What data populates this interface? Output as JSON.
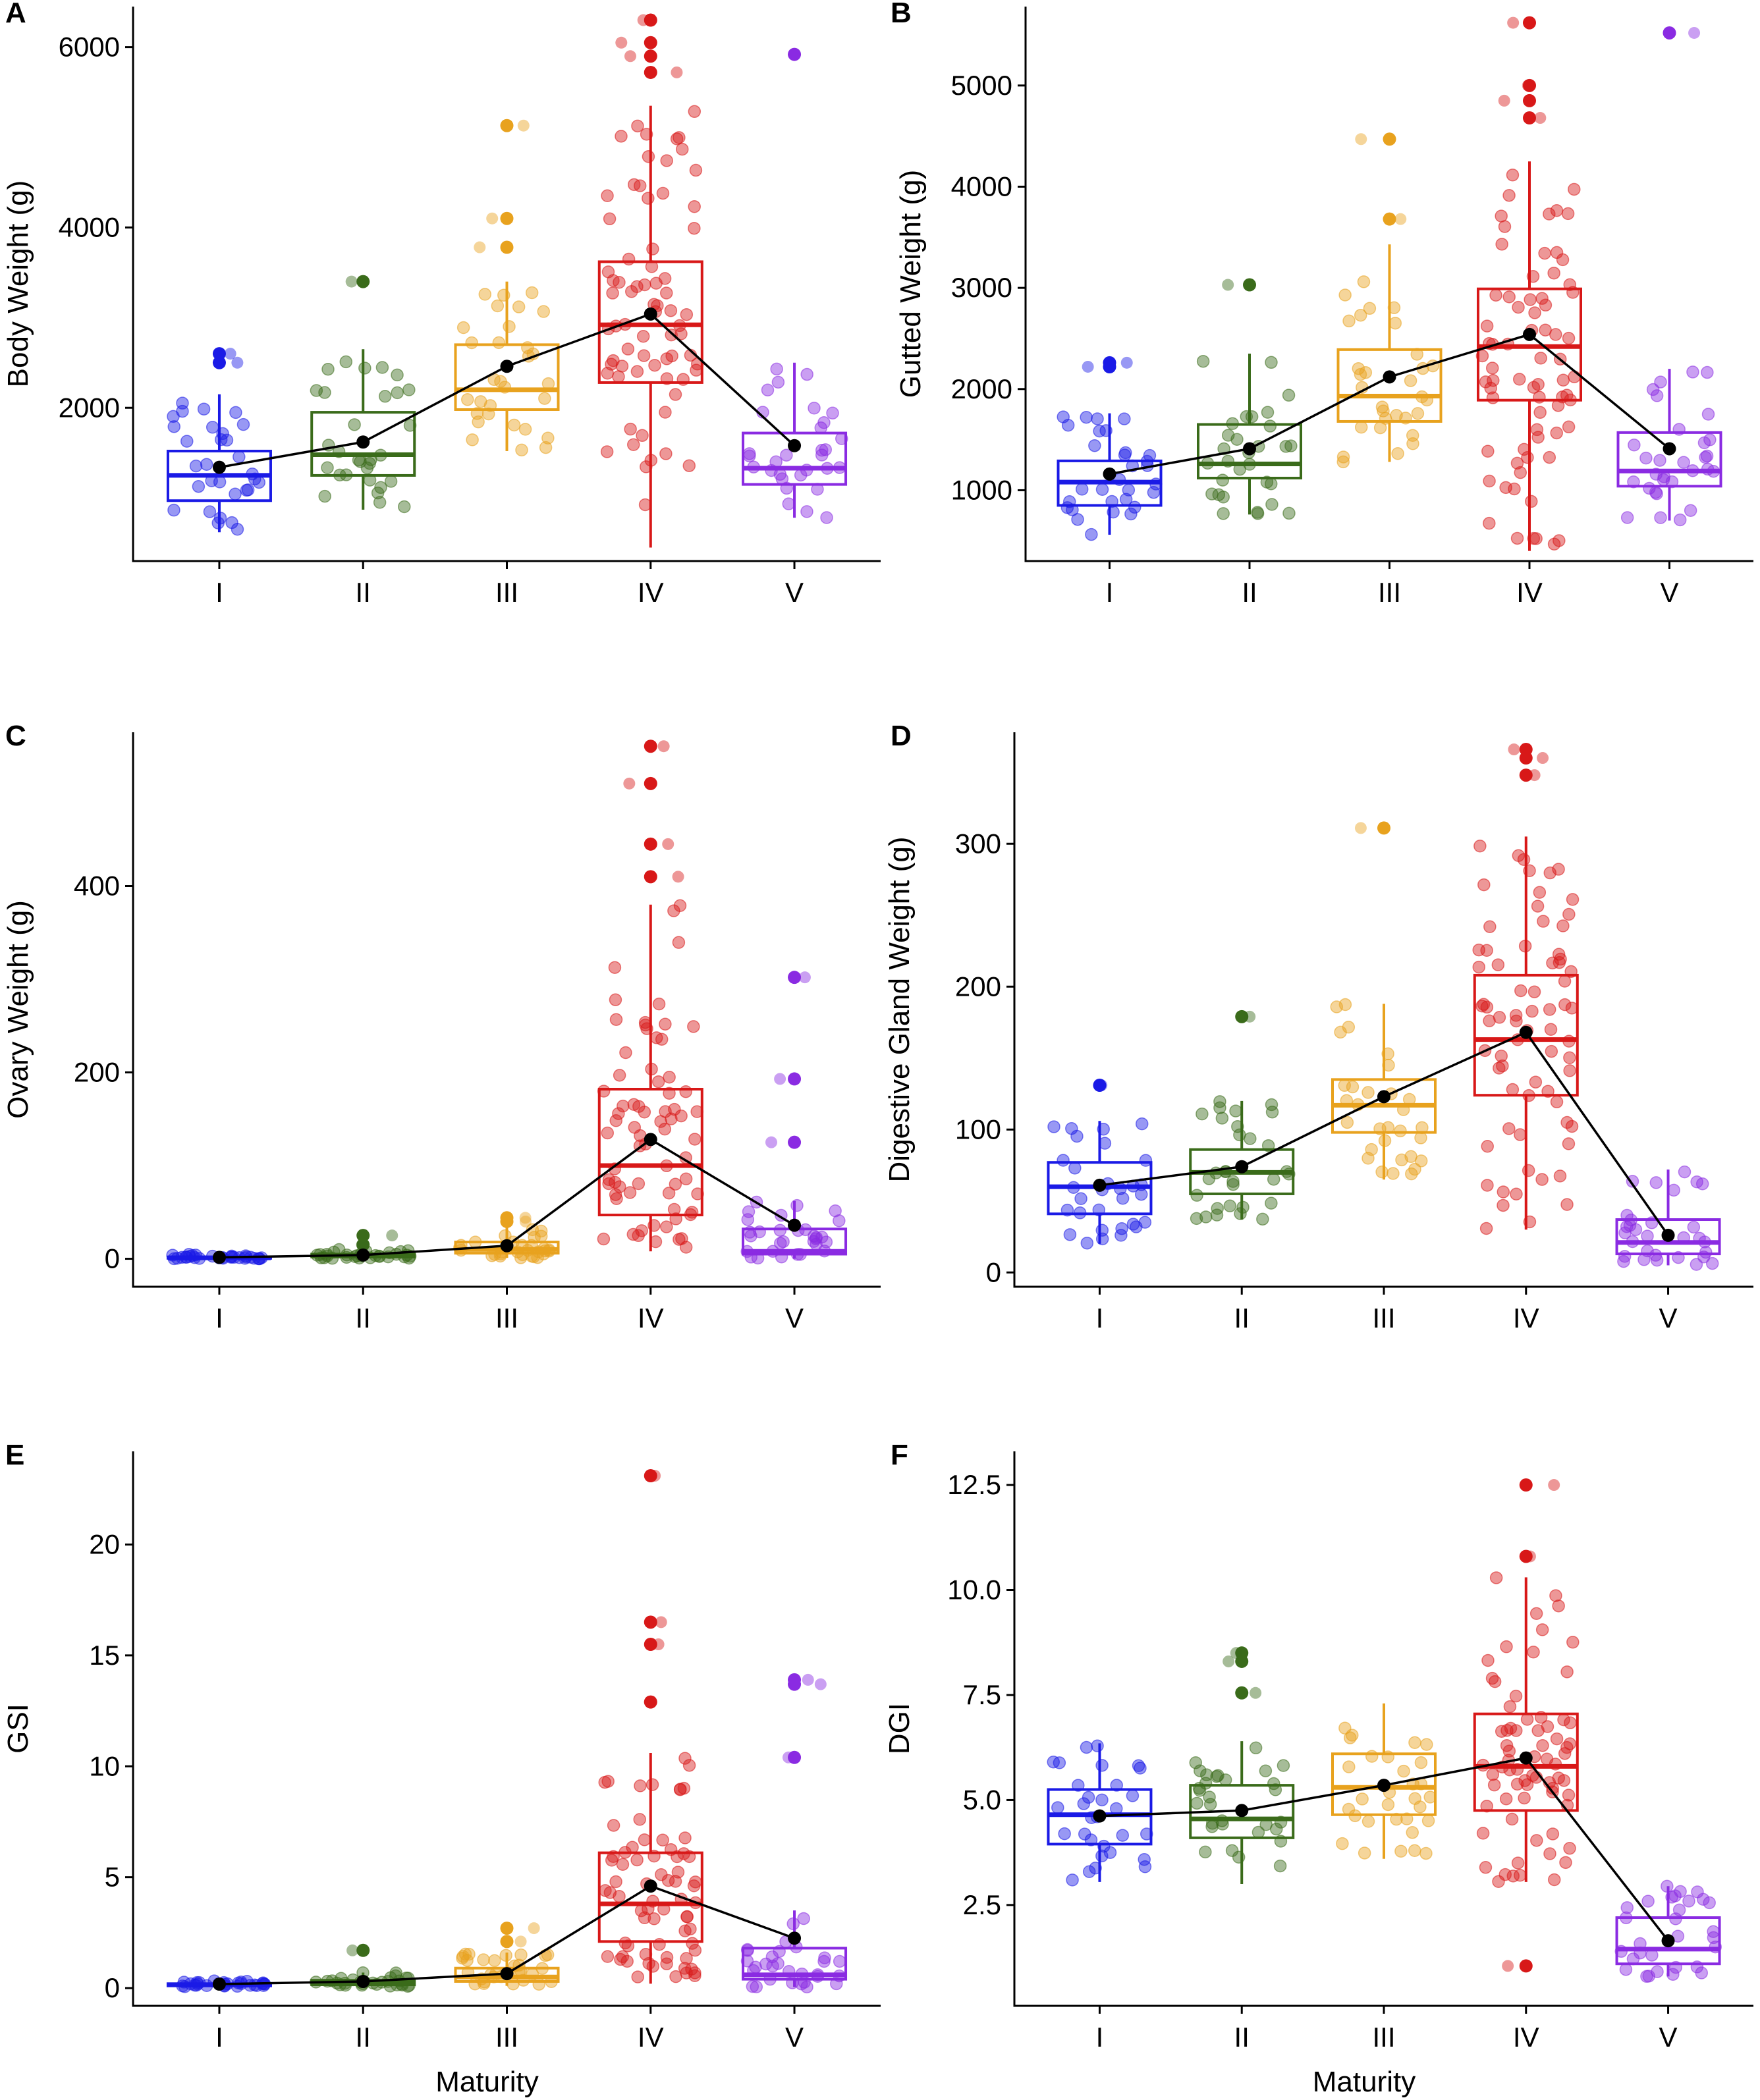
{
  "figure": {
    "xlabel_bottom": "Maturity"
  },
  "colors": {
    "I": "#1a1ae6",
    "II": "#3a6b1a",
    "III": "#e8a21e",
    "IV": "#d81818",
    "V": "#8a2be2",
    "mean_line": "#000000"
  },
  "chart_data": [
    {
      "panel": "A",
      "type": "box",
      "ylabel": "Body Weight (g)",
      "ylim": [
        300,
        6450
      ],
      "yticks": [
        2000,
        4000,
        6000
      ],
      "categories": [
        "I",
        "II",
        "III",
        "IV",
        "V"
      ],
      "boxes": [
        {
          "q1": 970,
          "median": 1250,
          "q3": 1520,
          "whisker_low": 620,
          "whisker_high": 2150,
          "mean": 1340,
          "outliers": [
            2500,
            2600
          ]
        },
        {
          "q1": 1250,
          "median": 1480,
          "q3": 1950,
          "whisker_low": 870,
          "whisker_high": 2650,
          "mean": 1620,
          "outliers": [
            3400
          ]
        },
        {
          "q1": 1980,
          "median": 2200,
          "q3": 2700,
          "whisker_low": 1520,
          "whisker_high": 3400,
          "mean": 2460,
          "outliers": [
            3780,
            4100,
            5130
          ]
        },
        {
          "q1": 2280,
          "median": 2920,
          "q3": 3620,
          "whisker_low": 450,
          "whisker_high": 5350,
          "mean": 3040,
          "outliers": [
            5720,
            5900,
            6050,
            6300
          ]
        },
        {
          "q1": 1150,
          "median": 1330,
          "q3": 1720,
          "whisker_low": 780,
          "whisker_high": 2500,
          "mean": 1580,
          "outliers": [
            5920
          ]
        }
      ]
    },
    {
      "panel": "B",
      "type": "box",
      "ylabel": "Gutted Weight (g)",
      "ylim": [
        300,
        5780
      ],
      "yticks": [
        1000,
        2000,
        3000,
        4000,
        5000
      ],
      "categories": [
        "I",
        "II",
        "III",
        "IV",
        "V"
      ],
      "boxes": [
        {
          "q1": 850,
          "median": 1080,
          "q3": 1290,
          "whisker_low": 560,
          "whisker_high": 1760,
          "mean": 1160,
          "outliers": [
            2220,
            2260
          ]
        },
        {
          "q1": 1120,
          "median": 1260,
          "q3": 1650,
          "whisker_low": 760,
          "whisker_high": 2350,
          "mean": 1410,
          "outliers": [
            3030
          ]
        },
        {
          "q1": 1680,
          "median": 1930,
          "q3": 2390,
          "whisker_low": 1280,
          "whisker_high": 3430,
          "mean": 2120,
          "outliers": [
            3680,
            4470
          ]
        },
        {
          "q1": 1890,
          "median": 2420,
          "q3": 2990,
          "whisker_low": 400,
          "whisker_high": 4250,
          "mean": 2540,
          "outliers": [
            4680,
            4850,
            5000,
            5620
          ]
        },
        {
          "q1": 1040,
          "median": 1190,
          "q3": 1570,
          "whisker_low": 700,
          "whisker_high": 2200,
          "mean": 1410,
          "outliers": [
            5520
          ]
        }
      ]
    },
    {
      "panel": "C",
      "type": "box",
      "ylabel": "Ovary Weight (g)",
      "ylim": [
        -30,
        565
      ],
      "yticks": [
        0,
        200,
        400
      ],
      "categories": [
        "I",
        "II",
        "III",
        "IV",
        "V"
      ],
      "boxes": [
        {
          "q1": 0.5,
          "median": 1,
          "q3": 2,
          "whisker_low": 0,
          "whisker_high": 5,
          "mean": 1.5,
          "outliers": []
        },
        {
          "q1": 2,
          "median": 3,
          "q3": 5,
          "whisker_low": 0.5,
          "whisker_high": 10,
          "mean": 4,
          "outliers": [
            15,
            25
          ]
        },
        {
          "q1": 6,
          "median": 10,
          "q3": 18,
          "whisker_low": 1,
          "whisker_high": 35,
          "mean": 14,
          "outliers": [
            40,
            44
          ]
        },
        {
          "q1": 47,
          "median": 100,
          "q3": 182,
          "whisker_low": 8,
          "whisker_high": 380,
          "mean": 128,
          "outliers": [
            410,
            445,
            510,
            550
          ]
        },
        {
          "q1": 5,
          "median": 8,
          "q3": 32,
          "whisker_low": 0,
          "whisker_high": 62,
          "mean": 36,
          "outliers": [
            125,
            193,
            302
          ]
        }
      ]
    },
    {
      "panel": "D",
      "type": "box",
      "ylabel": "Digestive Gland Weight (g)",
      "ylim": [
        -10,
        378
      ],
      "yticks": [
        0,
        100,
        200,
        300
      ],
      "categories": [
        "I",
        "II",
        "III",
        "IV",
        "V"
      ],
      "boxes": [
        {
          "q1": 41,
          "median": 60,
          "q3": 77,
          "whisker_low": 20,
          "whisker_high": 106,
          "mean": 61,
          "outliers": [
            131
          ]
        },
        {
          "q1": 55,
          "median": 70,
          "q3": 86,
          "whisker_low": 37,
          "whisker_high": 120,
          "mean": 74,
          "outliers": [
            179
          ]
        },
        {
          "q1": 98,
          "median": 117,
          "q3": 135,
          "whisker_low": 65,
          "whisker_high": 188,
          "mean": 123,
          "outliers": [
            311
          ]
        },
        {
          "q1": 124,
          "median": 163,
          "q3": 208,
          "whisker_low": 30,
          "whisker_high": 305,
          "mean": 168,
          "outliers": [
            348,
            360,
            366
          ]
        },
        {
          "q1": 13,
          "median": 21,
          "q3": 37,
          "whisker_low": 5,
          "whisker_high": 72,
          "mean": 26,
          "outliers": []
        }
      ]
    },
    {
      "panel": "E",
      "type": "box",
      "ylabel": "GSI",
      "ylim": [
        -0.8,
        24.2
      ],
      "yticks": [
        0,
        5,
        10,
        15,
        20
      ],
      "categories": [
        "I",
        "II",
        "III",
        "IV",
        "V"
      ],
      "boxes": [
        {
          "q1": 0.1,
          "median": 0.15,
          "q3": 0.2,
          "whisker_low": 0.05,
          "whisker_high": 0.35,
          "mean": 0.18,
          "outliers": []
        },
        {
          "q1": 0.15,
          "median": 0.22,
          "q3": 0.35,
          "whisker_low": 0.05,
          "whisker_high": 0.7,
          "mean": 0.3,
          "outliers": [
            1.7
          ]
        },
        {
          "q1": 0.3,
          "median": 0.5,
          "q3": 0.9,
          "whisker_low": 0.1,
          "whisker_high": 1.6,
          "mean": 0.65,
          "outliers": [
            2.1,
            2.7
          ]
        },
        {
          "q1": 2.1,
          "median": 3.8,
          "q3": 6.1,
          "whisker_low": 0.2,
          "whisker_high": 10.6,
          "mean": 4.6,
          "outliers": [
            12.9,
            15.5,
            16.5,
            23.1
          ]
        },
        {
          "q1": 0.4,
          "median": 0.6,
          "q3": 1.8,
          "whisker_low": 0.05,
          "whisker_high": 3.5,
          "mean": 2.25,
          "outliers": [
            10.4,
            13.7,
            13.9
          ]
        }
      ]
    },
    {
      "panel": "F",
      "type": "box",
      "ylabel": "DGI",
      "ylim": [
        0.1,
        13.3
      ],
      "yticks": [
        2.5,
        5.0,
        7.5,
        10.0,
        12.5
      ],
      "ytick_labels": [
        "2.5",
        "5.0",
        "7.5",
        "10.0",
        "12.5"
      ],
      "categories": [
        "I",
        "II",
        "III",
        "IV",
        "V"
      ],
      "boxes": [
        {
          "q1": 3.95,
          "median": 4.65,
          "q3": 5.25,
          "whisker_low": 3.05,
          "whisker_high": 6.35,
          "mean": 4.62,
          "outliers": []
        },
        {
          "q1": 4.1,
          "median": 4.55,
          "q3": 5.35,
          "whisker_low": 3.0,
          "whisker_high": 6.4,
          "mean": 4.75,
          "outliers": [
            7.55,
            8.3,
            8.5
          ]
        },
        {
          "q1": 4.65,
          "median": 5.3,
          "q3": 6.1,
          "whisker_low": 3.6,
          "whisker_high": 7.3,
          "mean": 5.35,
          "outliers": []
        },
        {
          "q1": 4.75,
          "median": 5.8,
          "q3": 7.05,
          "whisker_low": 3.05,
          "whisker_high": 10.3,
          "mean": 6.0,
          "outliers": [
            1.05,
            10.8,
            12.5
          ]
        },
        {
          "q1": 1.1,
          "median": 1.45,
          "q3": 2.2,
          "whisker_low": 0.8,
          "whisker_high": 2.95,
          "mean": 1.65,
          "outliers": []
        }
      ]
    }
  ]
}
